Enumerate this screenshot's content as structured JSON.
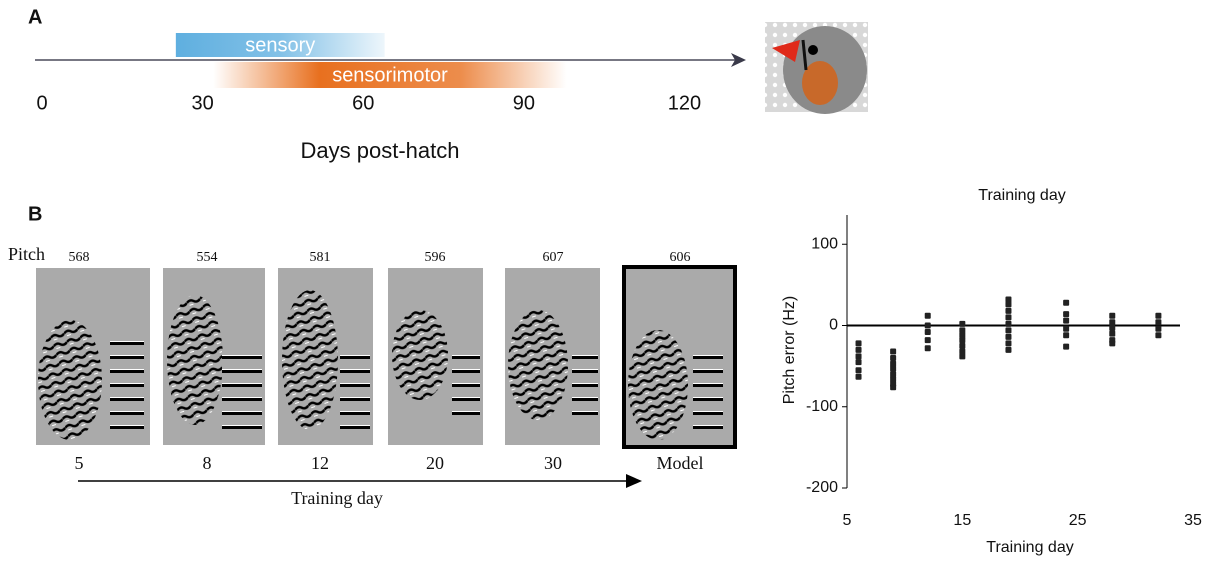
{
  "chart_data": [
    {
      "type": "timeline",
      "panel": "A",
      "xlabel": "Days post-hatch",
      "xlim": [
        0,
        130
      ],
      "xticks": [
        0,
        30,
        60,
        90,
        120
      ],
      "ranges": [
        {
          "name": "sensory",
          "start": 25,
          "end": 64,
          "color": "#4da6dc"
        },
        {
          "name": "sensorimotor",
          "start": 32,
          "end": 98,
          "color": "#e8701f"
        }
      ]
    },
    {
      "type": "scatter",
      "title": "Training day",
      "xlabel": "Training day",
      "ylabel": "Pitch error (Hz)",
      "xlim": [
        5,
        35
      ],
      "ylim": [
        -200,
        136
      ],
      "xticks": [
        5,
        15,
        25,
        35
      ],
      "yticks": [
        -200,
        -100,
        0,
        100
      ],
      "hline": 0,
      "color": "#222222",
      "x": [
        6,
        6,
        6,
        6,
        6,
        6,
        9,
        9,
        9,
        9,
        9,
        9,
        9,
        9,
        12,
        12,
        12,
        12,
        12,
        15,
        15,
        15,
        15,
        15,
        15,
        15,
        19,
        19,
        19,
        19,
        19,
        19,
        19,
        19,
        19,
        24,
        24,
        24,
        24,
        24,
        24,
        28,
        28,
        28,
        28,
        28,
        28,
        32,
        32,
        32,
        32
      ],
      "y": [
        -22,
        -30,
        -38,
        -45,
        -55,
        -63,
        -32,
        -40,
        -47,
        -53,
        -60,
        -66,
        -72,
        -76,
        12,
        0,
        -8,
        -18,
        -28,
        2,
        -6,
        -12,
        -18,
        -25,
        -32,
        -38,
        32,
        26,
        18,
        10,
        2,
        -6,
        -14,
        -22,
        -30,
        28,
        14,
        6,
        -4,
        -12,
        -26,
        12,
        4,
        -3,
        -10,
        -18,
        -22,
        12,
        4,
        -4,
        -12
      ]
    }
  ],
  "panel_b": {
    "label": "B",
    "pitch_label": "Pitch",
    "xlabel": "Training day",
    "columns": [
      {
        "pitch": 568,
        "day": 5
      },
      {
        "pitch": 554,
        "day": 8
      },
      {
        "pitch": 581,
        "day": 12
      },
      {
        "pitch": 596,
        "day": 20
      },
      {
        "pitch": 607,
        "day": 30
      },
      {
        "pitch": 606,
        "day": "Model"
      }
    ]
  }
}
